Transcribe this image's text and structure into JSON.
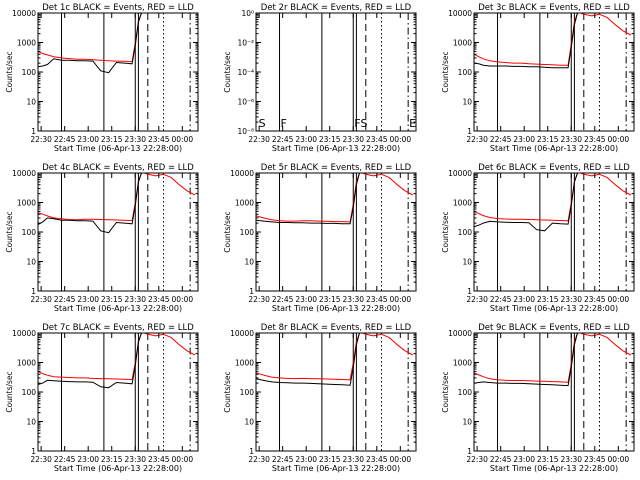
{
  "window": {
    "title": ""
  },
  "colors": {
    "background": "#ffffff",
    "events": "#000000",
    "lld": "#ff0000",
    "frame": "#000000"
  },
  "axis_common": {
    "xlabel": "Start Time (06-Apr-13 22:28:00)",
    "ylabel": "Counts/sec",
    "xticks": [
      "22:30",
      "22:45",
      "23:00",
      "23:15",
      "23:30",
      "23:45",
      "00:00"
    ],
    "xticks_min": [
      2,
      17,
      32,
      47,
      62,
      77,
      92
    ],
    "xlim_min": [
      0,
      102
    ],
    "yscale": "log",
    "yticks": [
      "1",
      "10",
      "100",
      "1000",
      "10000"
    ],
    "ylim": [
      1,
      10000
    ],
    "grid": false,
    "legend": "in panel titles"
  },
  "panels_meta": [
    {
      "title": "Det 1c BLACK = Events, RED = LLD"
    },
    {
      "title": "Det 2r BLACK = Events, RED = LLD",
      "yticks": [
        "10⁻⁸",
        "10⁻⁶",
        "10⁻⁴",
        "10⁻²",
        "10⁰"
      ],
      "annotations": [
        "S",
        "F",
        "F",
        "S",
        "E"
      ]
    },
    {
      "title": "Det 3c BLACK = Events, RED = LLD"
    },
    {
      "title": "Det 4c BLACK = Events, RED = LLD"
    },
    {
      "title": "Det 5r BLACK = Events, RED = LLD"
    },
    {
      "title": "Det 6c BLACK = Events, RED = LLD"
    },
    {
      "title": "Det 7c BLACK = Events, RED = LLD"
    },
    {
      "title": "Det 8r BLACK = Events, RED = LLD"
    },
    {
      "title": "Det 9c BLACK = Events, RED = LLD"
    }
  ],
  "chart_data": [
    {
      "type": "line",
      "title": "Det 1c BLACK = Events, RED = LLD",
      "xlabel": "Start Time (06-Apr-13 22:28:00)",
      "ylabel": "Counts/sec",
      "x": [
        0,
        3,
        6,
        10,
        15,
        20,
        25,
        30,
        35,
        40,
        45,
        50,
        55,
        60,
        62,
        64,
        66,
        67,
        68
      ],
      "series": [
        {
          "values": [
            500,
            420,
            380,
            330,
            300,
            285,
            270,
            270,
            260,
            250,
            240,
            235,
            230,
            225,
            1000,
            5000,
            10000,
            10000,
            10000
          ]
        },
        {
          "values": [
            150,
            160,
            180,
            280,
            250,
            250,
            240,
            240,
            235,
            110,
            95,
            210,
            200,
            190,
            800,
            5000,
            10000,
            10000,
            10000
          ]
        }
      ],
      "vlines_solid": [
        15,
        42,
        62,
        64
      ],
      "vlines_dashed": [
        70
      ],
      "vlines_dotted": [
        80
      ],
      "vlines_dashdot": [
        97
      ],
      "ylim": [
        1,
        10000
      ]
    },
    {
      "type": "line",
      "title": "Det 2r BLACK = Events, RED = LLD",
      "xlabel": "Start Time (06-Apr-13 22:28:00)",
      "ylabel": "Counts/sec",
      "series": [],
      "vlines_solid": [
        15,
        42,
        62,
        64
      ],
      "vlines_dashed": [
        70
      ],
      "vlines_dotted": [
        80
      ],
      "vlines_dashdot": [
        97
      ]
    },
    {
      "type": "line",
      "title": "Det 3c BLACK = Events, RED = LLD",
      "xlabel": "Start Time (06-Apr-13 22:28:00)",
      "ylabel": "Counts/sec",
      "x": [
        0,
        3,
        6,
        10,
        15,
        20,
        25,
        30,
        35,
        40,
        45,
        50,
        55,
        60,
        62,
        64,
        66,
        67,
        68,
        70,
        75,
        80,
        85,
        90,
        95,
        100
      ],
      "series": [
        {
          "values": [
            400,
            330,
            280,
            240,
            220,
            210,
            200,
            200,
            190,
            185,
            180,
            175,
            170,
            170,
            900,
            5000,
            10000,
            10000,
            10000,
            9000,
            8000,
            9000,
            7000,
            4000,
            2500,
            1800
          ]
        },
        {
          "values": [
            200,
            190,
            170,
            160,
            160,
            160,
            155,
            155,
            150,
            150,
            145,
            140,
            140,
            140,
            700,
            4000,
            10000,
            10000,
            10000,
            null,
            null,
            null,
            null,
            null,
            null,
            null
          ]
        }
      ],
      "vlines_solid": [
        15,
        42,
        62,
        64
      ],
      "vlines_dashed": [
        70
      ],
      "vlines_dotted": [
        80
      ],
      "vlines_dashdot": [
        97
      ],
      "ylim": [
        1,
        10000
      ]
    },
    {
      "type": "line",
      "title": "Det 4c BLACK = Events, RED = LLD",
      "xlabel": "Start Time (06-Apr-13 22:28:00)",
      "ylabel": "Counts/sec",
      "x": [
        0,
        3,
        6,
        10,
        15,
        20,
        25,
        30,
        35,
        40,
        45,
        50,
        55,
        60,
        62,
        64,
        66,
        67,
        68,
        70,
        75,
        80,
        85,
        90,
        95,
        100
      ],
      "series": [
        {
          "values": [
            450,
            400,
            350,
            300,
            280,
            265,
            260,
            270,
            270,
            265,
            260,
            255,
            250,
            245,
            1000,
            5000,
            10000,
            10000,
            10000,
            9000,
            8000,
            9000,
            7000,
            4000,
            2500,
            1800
          ]
        },
        {
          "values": [
            180,
            220,
            300,
            280,
            250,
            250,
            240,
            240,
            235,
            110,
            95,
            210,
            200,
            190,
            800,
            5000,
            10000,
            10000,
            10000,
            null,
            null,
            null,
            null,
            null,
            null,
            null
          ]
        }
      ],
      "vlines_solid": [
        15,
        42,
        62,
        64
      ],
      "vlines_dashed": [
        70
      ],
      "vlines_dotted": [
        80
      ],
      "vlines_dashdot": [
        97
      ],
      "ylim": [
        1,
        10000
      ]
    },
    {
      "type": "line",
      "title": "Det 5r BLACK = Events, RED = LLD",
      "xlabel": "Start Time (06-Apr-13 22:28:00)",
      "ylabel": "Counts/sec",
      "x": [
        0,
        3,
        6,
        10,
        15,
        20,
        25,
        30,
        35,
        40,
        45,
        50,
        55,
        60,
        62,
        64,
        66,
        67,
        68,
        70,
        75,
        80,
        85,
        90,
        95,
        100
      ],
      "series": [
        {
          "values": [
            350,
            320,
            290,
            260,
            240,
            235,
            235,
            240,
            240,
            235,
            230,
            225,
            225,
            220,
            900,
            5000,
            10000,
            10000,
            10000,
            9000,
            8000,
            9000,
            7000,
            4000,
            2500,
            1800
          ]
        },
        {
          "values": [
            250,
            240,
            230,
            220,
            210,
            210,
            205,
            205,
            200,
            200,
            195,
            195,
            190,
            190,
            700,
            4000,
            10000,
            10000,
            10000,
            null,
            null,
            null,
            null,
            null,
            null,
            null
          ]
        }
      ],
      "vlines_solid": [
        15,
        42,
        62,
        64
      ],
      "vlines_dashed": [
        70
      ],
      "vlines_dotted": [
        80
      ],
      "vlines_dashdot": [
        97
      ],
      "ylim": [
        1,
        10000
      ]
    },
    {
      "type": "line",
      "title": "Det 6c BLACK = Events, RED = LLD",
      "xlabel": "Start Time (06-Apr-13 22:28:00)",
      "ylabel": "Counts/sec",
      "x": [
        0,
        3,
        6,
        10,
        15,
        20,
        25,
        30,
        35,
        40,
        45,
        50,
        55,
        60,
        62,
        64,
        66,
        67,
        68,
        70,
        75,
        80,
        85,
        90,
        95,
        100
      ],
      "series": [
        {
          "values": [
            500,
            420,
            360,
            310,
            285,
            275,
            270,
            270,
            265,
            260,
            255,
            250,
            245,
            240,
            1000,
            5000,
            10000,
            10000,
            10000,
            9000,
            8000,
            9000,
            7000,
            4000,
            2500,
            1800
          ]
        },
        {
          "values": [
            150,
            170,
            200,
            230,
            220,
            215,
            210,
            210,
            205,
            120,
            110,
            200,
            190,
            185,
            800,
            5000,
            10000,
            10000,
            10000,
            null,
            null,
            null,
            null,
            null,
            null,
            null
          ]
        }
      ],
      "vlines_solid": [
        15,
        42,
        62,
        64
      ],
      "vlines_dashed": [
        70
      ],
      "vlines_dotted": [
        80
      ],
      "vlines_dashdot": [
        97
      ],
      "ylim": [
        1,
        10000
      ]
    },
    {
      "type": "line",
      "title": "Det 7c BLACK = Events, RED = LLD",
      "xlabel": "Start Time (06-Apr-13 22:28:00)",
      "ylabel": "Counts/sec",
      "x": [
        0,
        3,
        6,
        10,
        15,
        20,
        25,
        30,
        35,
        40,
        45,
        50,
        55,
        60,
        62,
        64,
        66,
        67,
        68,
        70,
        75,
        80,
        85,
        90,
        95,
        100
      ],
      "series": [
        {
          "values": [
            500,
            420,
            370,
            330,
            320,
            310,
            300,
            300,
            290,
            285,
            280,
            275,
            270,
            265,
            1000,
            5000,
            10000,
            10000,
            10000,
            9000,
            8000,
            9000,
            7000,
            4000,
            2500,
            1800
          ]
        },
        {
          "values": [
            180,
            200,
            250,
            240,
            230,
            225,
            220,
            220,
            215,
            150,
            140,
            210,
            200,
            190,
            800,
            5000,
            10000,
            10000,
            10000,
            null,
            null,
            null,
            null,
            null,
            null,
            null
          ]
        }
      ],
      "vlines_solid": [
        15,
        42,
        62,
        64
      ],
      "vlines_dashed": [
        70
      ],
      "vlines_dotted": [
        80
      ],
      "vlines_dashdot": [
        97
      ],
      "ylim": [
        1,
        10000
      ]
    },
    {
      "type": "line",
      "title": "Det 8r BLACK = Events, RED = LLD",
      "xlabel": "Start Time (06-Apr-13 22:28:00)",
      "ylabel": "Counts/sec",
      "x": [
        0,
        3,
        6,
        10,
        15,
        20,
        25,
        30,
        35,
        40,
        45,
        50,
        55,
        60,
        62,
        64,
        66,
        67,
        68,
        70,
        75,
        80,
        85,
        90,
        95,
        100
      ],
      "series": [
        {
          "values": [
            450,
            400,
            360,
            320,
            300,
            290,
            285,
            290,
            285,
            280,
            275,
            270,
            265,
            260,
            1000,
            5000,
            10000,
            10000,
            10000,
            9000,
            8000,
            9000,
            7000,
            4000,
            2500,
            1800
          ]
        },
        {
          "values": [
            280,
            260,
            240,
            220,
            210,
            205,
            200,
            200,
            195,
            190,
            185,
            180,
            175,
            170,
            700,
            4000,
            10000,
            10000,
            10000,
            null,
            null,
            null,
            null,
            null,
            null,
            null
          ]
        }
      ],
      "vlines_solid": [
        15,
        42,
        62,
        64
      ],
      "vlines_dashed": [
        70
      ],
      "vlines_dotted": [
        80
      ],
      "vlines_dashdot": [
        97
      ],
      "ylim": [
        1,
        10000
      ]
    },
    {
      "type": "line",
      "title": "Det 9c BLACK = Events, RED = LLD",
      "xlabel": "Start Time (06-Apr-13 22:28:00)",
      "ylabel": "Counts/sec",
      "x": [
        0,
        3,
        6,
        10,
        15,
        20,
        25,
        30,
        35,
        40,
        45,
        50,
        55,
        60,
        62,
        64,
        66,
        67,
        68,
        70,
        75,
        80,
        85,
        90,
        95,
        100
      ],
      "series": [
        {
          "values": [
            450,
            380,
            330,
            280,
            260,
            250,
            245,
            245,
            240,
            235,
            230,
            225,
            220,
            215,
            900,
            5000,
            10000,
            10000,
            10000,
            9000,
            8000,
            9000,
            7000,
            4000,
            2500,
            1800
          ]
        },
        {
          "values": [
            200,
            210,
            220,
            210,
            200,
            200,
            195,
            195,
            190,
            185,
            180,
            175,
            170,
            165,
            700,
            4000,
            10000,
            10000,
            10000,
            null,
            null,
            null,
            null,
            null,
            null,
            null
          ]
        }
      ],
      "vlines_solid": [
        15,
        42,
        62,
        64
      ],
      "vlines_dashed": [
        70
      ],
      "vlines_dotted": [
        80
      ],
      "vlines_dashdot": [
        97
      ],
      "ylim": [
        1,
        10000
      ]
    }
  ]
}
